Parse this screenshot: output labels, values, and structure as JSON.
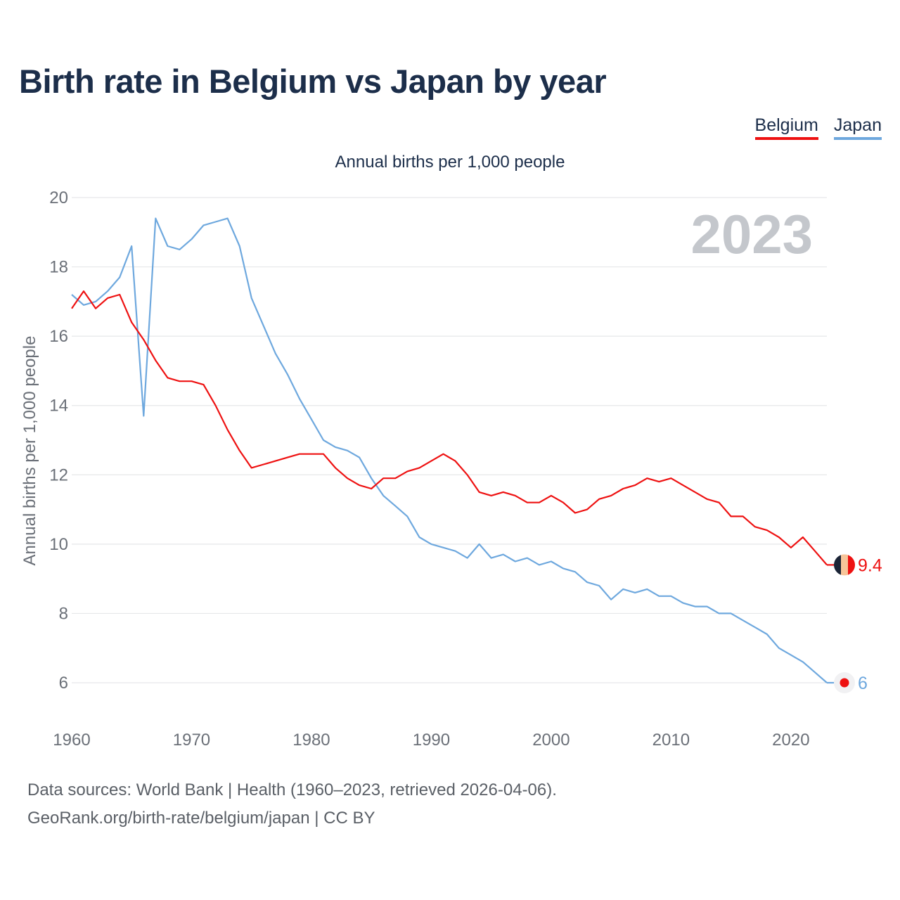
{
  "title": "Birth rate in Belgium vs Japan by year",
  "legend": [
    {
      "name": "Belgium",
      "color": "#ee1111"
    },
    {
      "name": "Japan",
      "color": "#6ea8de"
    }
  ],
  "subtitle": "Annual births per 1,000 people",
  "year_label": "2023",
  "footer": {
    "sources": "Data sources: World Bank | Health (1960–2023, retrieved 2026-04-06).",
    "credit": "GeoRank.org/birth-rate/belgium/japan | CC BY"
  },
  "chart_data": {
    "type": "line",
    "title": "Birth rate in Belgium vs Japan by year",
    "ylabel": "Annual births per 1,000 people",
    "xlabel": "",
    "xlim": [
      1960,
      2023
    ],
    "ylim": [
      5,
      20
    ],
    "xticks": [
      1960,
      1970,
      1980,
      1990,
      2000,
      2010,
      2020
    ],
    "yticks": [
      6,
      8,
      10,
      12,
      14,
      16,
      18,
      20
    ],
    "grid": true,
    "legend_position": "top-right",
    "x": [
      1960,
      1961,
      1962,
      1963,
      1964,
      1965,
      1966,
      1967,
      1968,
      1969,
      1970,
      1971,
      1972,
      1973,
      1974,
      1975,
      1976,
      1977,
      1978,
      1979,
      1980,
      1981,
      1982,
      1983,
      1984,
      1985,
      1986,
      1987,
      1988,
      1989,
      1990,
      1991,
      1992,
      1993,
      1994,
      1995,
      1996,
      1997,
      1998,
      1999,
      2000,
      2001,
      2002,
      2003,
      2004,
      2005,
      2006,
      2007,
      2008,
      2009,
      2010,
      2011,
      2012,
      2013,
      2014,
      2015,
      2016,
      2017,
      2018,
      2019,
      2020,
      2021,
      2022,
      2023
    ],
    "series": [
      {
        "name": "Belgium",
        "color": "#ee1111",
        "end_label": "9.4",
        "values": [
          16.8,
          17.3,
          16.8,
          17.1,
          17.2,
          16.4,
          15.9,
          15.3,
          14.8,
          14.7,
          14.7,
          14.6,
          14.0,
          13.3,
          12.7,
          12.2,
          12.3,
          12.4,
          12.5,
          12.6,
          12.6,
          12.6,
          12.2,
          11.9,
          11.7,
          11.6,
          11.9,
          11.9,
          12.1,
          12.2,
          12.4,
          12.6,
          12.4,
          12.0,
          11.5,
          11.4,
          11.5,
          11.4,
          11.2,
          11.2,
          11.4,
          11.2,
          10.9,
          11.0,
          11.3,
          11.4,
          11.6,
          11.7,
          11.9,
          11.8,
          11.9,
          11.7,
          11.5,
          11.3,
          11.2,
          10.8,
          10.8,
          10.5,
          10.4,
          10.2,
          9.9,
          10.2,
          9.8,
          9.4
        ]
      },
      {
        "name": "Japan",
        "color": "#6ea8de",
        "end_label": "6",
        "values": [
          17.2,
          16.9,
          17.0,
          17.3,
          17.7,
          18.6,
          13.7,
          19.4,
          18.6,
          18.5,
          18.8,
          19.2,
          19.3,
          19.4,
          18.6,
          17.1,
          16.3,
          15.5,
          14.9,
          14.2,
          13.6,
          13.0,
          12.8,
          12.7,
          12.5,
          11.9,
          11.4,
          11.1,
          10.8,
          10.2,
          10.0,
          9.9,
          9.8,
          9.6,
          10.0,
          9.6,
          9.7,
          9.5,
          9.6,
          9.4,
          9.5,
          9.3,
          9.2,
          8.9,
          8.8,
          8.4,
          8.7,
          8.6,
          8.7,
          8.5,
          8.5,
          8.3,
          8.2,
          8.2,
          8.0,
          8.0,
          7.8,
          7.6,
          7.4,
          7.0,
          6.8,
          6.6,
          6.3,
          6.0
        ]
      }
    ]
  }
}
